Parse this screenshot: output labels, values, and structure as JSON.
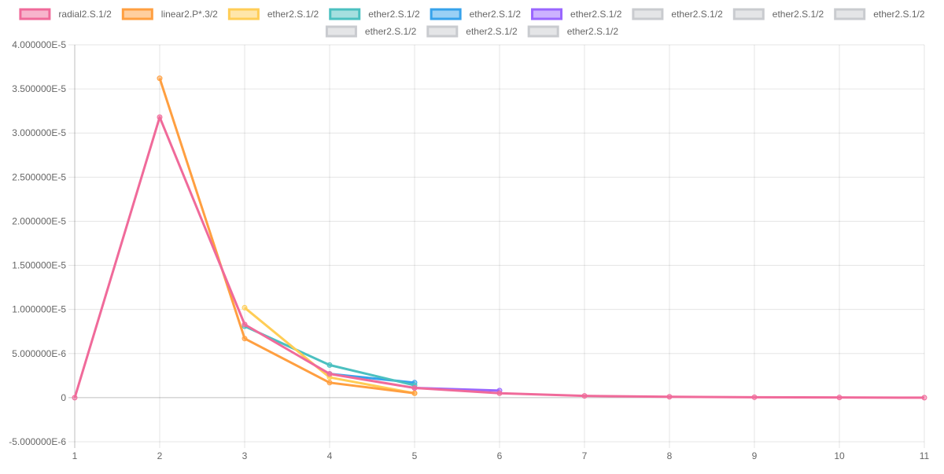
{
  "chart_data": {
    "type": "line",
    "x": [
      1,
      2,
      3,
      4,
      5,
      6,
      7,
      8,
      9,
      10,
      11
    ],
    "ylim": [
      -5e-06,
      4e-05
    ],
    "xlim": [
      1,
      11
    ],
    "y_ticks": [
      {
        "value": 4e-05,
        "label": "4.000000E-5"
      },
      {
        "value": 3.5e-05,
        "label": "3.500000E-5"
      },
      {
        "value": 3e-05,
        "label": "3.000000E-5"
      },
      {
        "value": 2.5e-05,
        "label": "2.500000E-5"
      },
      {
        "value": 2e-05,
        "label": "2.000000E-5"
      },
      {
        "value": 1.5e-05,
        "label": "1.500000E-5"
      },
      {
        "value": 1e-05,
        "label": "1.000000E-5"
      },
      {
        "value": 5e-06,
        "label": "5.000000E-6"
      },
      {
        "value": 0,
        "label": "0"
      },
      {
        "value": -5e-06,
        "label": "-5.000000E-6"
      }
    ],
    "x_ticks": [
      "1",
      "2",
      "3",
      "4",
      "5",
      "6",
      "7",
      "8",
      "9",
      "10",
      "11"
    ],
    "grid": true,
    "legend_position": "top",
    "series": [
      {
        "name": "ether2.S.1/2",
        "color": "#c9cbcf",
        "hidden": true,
        "values": [
          null,
          null,
          null,
          null,
          null,
          5e-07,
          4e-07,
          2.5e-07,
          1.5e-07,
          1e-07,
          5e-08
        ]
      },
      {
        "name": "ether2.S.1/2",
        "color": "#c9cbcf",
        "hidden": true,
        "values": [
          null,
          null,
          null,
          null,
          null,
          5e-07,
          3e-07,
          2e-07,
          1.2e-07,
          8e-08,
          4e-08
        ]
      },
      {
        "name": "ether2.S.1/2",
        "color": "#c9cbcf",
        "hidden": true,
        "values": [
          null,
          null,
          null,
          null,
          null,
          5e-07,
          3e-07,
          1.5e-07,
          1e-07,
          6e-08,
          3e-08
        ]
      },
      {
        "name": "ether2.S.1/2",
        "color": "#c9cbcf",
        "hidden": true,
        "values": [
          null,
          null,
          null,
          null,
          null,
          5e-07,
          3e-07,
          1.5e-07,
          1e-07,
          5e-08,
          2e-08
        ]
      },
      {
        "name": "ether2.S.1/2",
        "color": "#c9cbcf",
        "hidden": true,
        "values": [
          null,
          null,
          null,
          null,
          null,
          5e-07,
          3e-07,
          1.5e-07,
          8e-08,
          5e-08,
          2e-08
        ]
      },
      {
        "name": "ether2.S.1/2",
        "color": "#c9cbcf",
        "hidden": true,
        "values": [
          null,
          null,
          null,
          null,
          null,
          5e-07,
          3e-07,
          1.5e-07,
          8e-08,
          4e-08,
          1e-08
        ]
      },
      {
        "name": "ether2.S.1/2",
        "color": "#9966ff",
        "hidden": false,
        "values": [
          null,
          null,
          null,
          null,
          1.1e-06,
          8e-07,
          null,
          null,
          null,
          null,
          null
        ]
      },
      {
        "name": "ether2.S.1/2",
        "color": "#36a2eb",
        "hidden": false,
        "values": [
          null,
          null,
          null,
          2.7e-06,
          1.7e-06,
          null,
          null,
          null,
          null,
          null,
          null
        ]
      },
      {
        "name": "ether2.S.1/2",
        "color": "#4bc0c0",
        "hidden": false,
        "values": [
          null,
          null,
          8.1e-06,
          3.7e-06,
          1.4e-06,
          null,
          null,
          null,
          null,
          null,
          null
        ]
      },
      {
        "name": "ether2.S.1/2",
        "color": "#ffcd56",
        "hidden": false,
        "values": [
          null,
          null,
          1.02e-05,
          2.3e-06,
          5e-07,
          null,
          null,
          null,
          null,
          null,
          null
        ]
      },
      {
        "name": "linear2.P*.3/2",
        "color": "#ff9f40",
        "hidden": false,
        "values": [
          null,
          3.62e-05,
          6.7e-06,
          1.7e-06,
          5e-07,
          null,
          null,
          null,
          null,
          null,
          null
        ]
      },
      {
        "name": "radial2.S.1/2",
        "color": "#f06a9a",
        "hidden": false,
        "values": [
          0.0,
          3.18e-05,
          8.3e-06,
          2.7e-06,
          1.1e-06,
          5e-07,
          2e-07,
          1e-07,
          5e-08,
          2e-08,
          0.0
        ]
      }
    ],
    "legend": [
      {
        "label": "radial2.S.1/2",
        "color": "#f06a9a",
        "hidden": false
      },
      {
        "label": "linear2.P*.3/2",
        "color": "#ff9f40",
        "hidden": false
      },
      {
        "label": "ether2.S.1/2",
        "color": "#ffcd56",
        "hidden": false
      },
      {
        "label": "ether2.S.1/2",
        "color": "#4bc0c0",
        "hidden": false
      },
      {
        "label": "ether2.S.1/2",
        "color": "#36a2eb",
        "hidden": false
      },
      {
        "label": "ether2.S.1/2",
        "color": "#9966ff",
        "hidden": false
      },
      {
        "label": "ether2.S.1/2",
        "color": "#c9cbcf",
        "hidden": true
      },
      {
        "label": "ether2.S.1/2",
        "color": "#c9cbcf",
        "hidden": true
      },
      {
        "label": "ether2.S.1/2",
        "color": "#c9cbcf",
        "hidden": true
      },
      {
        "label": "ether2.S.1/2",
        "color": "#c9cbcf",
        "hidden": true
      },
      {
        "label": "ether2.S.1/2",
        "color": "#c9cbcf",
        "hidden": true
      },
      {
        "label": "ether2.S.1/2",
        "color": "#c9cbcf",
        "hidden": true
      }
    ]
  }
}
